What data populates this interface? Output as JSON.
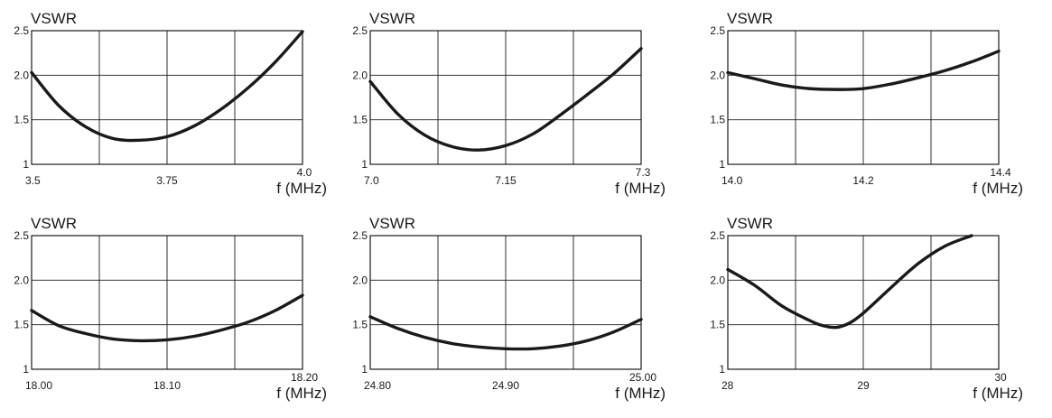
{
  "chart_data": [
    {
      "type": "line",
      "ylabel": "VSWR",
      "xlabel": "f (MHz)",
      "xlim": [
        3.5,
        4.0
      ],
      "ylim": [
        1,
        2.5
      ],
      "x_ticks": [
        "3.5",
        "3.75",
        "4.0"
      ],
      "y_ticks": [
        "1",
        "1.5",
        "2.0",
        "2.5"
      ],
      "series": [
        {
          "x": [
            3.5,
            3.55,
            3.6,
            3.65,
            3.7,
            3.75,
            3.8,
            3.85,
            3.9,
            3.95,
            4.0
          ],
          "values": [
            2.03,
            1.66,
            1.42,
            1.29,
            1.27,
            1.31,
            1.43,
            1.62,
            1.86,
            2.15,
            2.49
          ]
        }
      ]
    },
    {
      "type": "line",
      "ylabel": "VSWR",
      "xlabel": "f (MHz)",
      "xlim": [
        7.0,
        7.3
      ],
      "ylim": [
        1,
        2.5
      ],
      "x_ticks": [
        "7.0",
        "7.15",
        "7.3"
      ],
      "y_ticks": [
        "1",
        "1.5",
        "2.0",
        "2.5"
      ],
      "series": [
        {
          "x": [
            7.0,
            7.03,
            7.06,
            7.09,
            7.12,
            7.15,
            7.18,
            7.21,
            7.24,
            7.27,
            7.3
          ],
          "values": [
            1.93,
            1.57,
            1.33,
            1.2,
            1.16,
            1.21,
            1.34,
            1.55,
            1.78,
            2.02,
            2.3
          ]
        }
      ]
    },
    {
      "type": "line",
      "ylabel": "VSWR",
      "xlabel": "f (MHz)",
      "xlim": [
        14.0,
        14.4
      ],
      "ylim": [
        1,
        2.5
      ],
      "x_ticks": [
        "14.0",
        "14.2",
        "14.4"
      ],
      "y_ticks": [
        "1",
        "1.5",
        "2.0",
        "2.5"
      ],
      "series": [
        {
          "x": [
            14.0,
            14.04,
            14.08,
            14.12,
            14.16,
            14.2,
            14.24,
            14.28,
            14.32,
            14.36,
            14.4
          ],
          "values": [
            2.03,
            1.96,
            1.89,
            1.85,
            1.84,
            1.85,
            1.9,
            1.97,
            2.05,
            2.15,
            2.27
          ]
        }
      ]
    },
    {
      "type": "line",
      "ylabel": "VSWR",
      "xlabel": "f (MHz)",
      "xlim": [
        18.0,
        18.2
      ],
      "ylim": [
        1,
        2.5
      ],
      "x_ticks": [
        "18.00",
        "18.10",
        "18.20"
      ],
      "y_ticks": [
        "1",
        "1.5",
        "2.0",
        "2.5"
      ],
      "series": [
        {
          "x": [
            18.0,
            18.02,
            18.04,
            18.06,
            18.08,
            18.1,
            18.12,
            18.14,
            18.16,
            18.18,
            18.2
          ],
          "values": [
            1.66,
            1.49,
            1.4,
            1.34,
            1.32,
            1.33,
            1.37,
            1.44,
            1.53,
            1.66,
            1.83
          ]
        }
      ]
    },
    {
      "type": "line",
      "ylabel": "VSWR",
      "xlabel": "f (MHz)",
      "xlim": [
        24.8,
        25.0
      ],
      "ylim": [
        1,
        2.5
      ],
      "x_ticks": [
        "24.80",
        "24.90",
        "25.00"
      ],
      "y_ticks": [
        "1",
        "1.5",
        "2.0",
        "2.5"
      ],
      "series": [
        {
          "x": [
            24.8,
            24.82,
            24.84,
            24.86,
            24.88,
            24.9,
            24.92,
            24.94,
            24.96,
            24.98,
            25.0
          ],
          "values": [
            1.59,
            1.46,
            1.36,
            1.29,
            1.25,
            1.23,
            1.23,
            1.26,
            1.32,
            1.42,
            1.56
          ]
        }
      ]
    },
    {
      "type": "line",
      "ylabel": "VSWR",
      "xlabel": "f (MHz)",
      "xlim": [
        28,
        30
      ],
      "ylim": [
        1,
        2.5
      ],
      "x_ticks": [
        "28",
        "29",
        "30"
      ],
      "y_ticks": [
        "1",
        "1.5",
        "2.0",
        "2.5"
      ],
      "series": [
        {
          "x": [
            28.0,
            28.2,
            28.4,
            28.6,
            28.7,
            28.8,
            28.9,
            29.0,
            29.2,
            29.4,
            29.6,
            29.8
          ],
          "values": [
            2.12,
            1.94,
            1.71,
            1.55,
            1.49,
            1.47,
            1.52,
            1.63,
            1.91,
            2.18,
            2.38,
            2.5
          ]
        }
      ]
    }
  ]
}
